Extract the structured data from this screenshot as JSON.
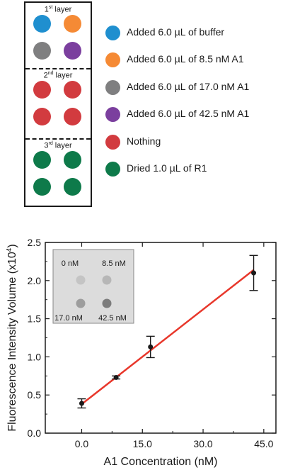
{
  "colors": {
    "blue": "#1f8fcf",
    "orange": "#f58a35",
    "gray": "#7f7f80",
    "purple": "#7b3f9e",
    "red": "#d23b3f",
    "green": "#0e7a4a",
    "fit_line": "#e8372b"
  },
  "diagram": {
    "layers": [
      {
        "number": "1",
        "suffix": "st",
        "word": "layer",
        "dots": [
          "blue",
          "orange",
          "gray",
          "purple"
        ]
      },
      {
        "number": "2",
        "suffix": "nd",
        "word": "layer",
        "dots": [
          "red",
          "red",
          "red",
          "red"
        ]
      },
      {
        "number": "3",
        "suffix": "rd",
        "word": "layer",
        "dots": [
          "green",
          "green",
          "green",
          "green"
        ]
      }
    ]
  },
  "legend": [
    {
      "color": "blue",
      "text": "Added 6.0 µL of buffer"
    },
    {
      "color": "orange",
      "text": "Added 6.0 µL of 8.5 nM A1"
    },
    {
      "color": "gray",
      "text": "Added 6.0 µL of 17.0 nM A1"
    },
    {
      "color": "purple",
      "text": "Added 6.0 µL of 42.5 nM A1"
    },
    {
      "color": "red",
      "text": "Nothing"
    },
    {
      "color": "green",
      "text": "Dried 1.0 µL of  R1"
    }
  ],
  "chart_data": {
    "type": "scatter",
    "xlabel": "A1 Concentration (nM)",
    "ylabel_main": "Fluorescence Intensity Volume (x10",
    "ylabel_exp": "4",
    "ylabel_end": ")",
    "xlim": [
      -9,
      48
    ],
    "ylim": [
      0,
      2.5
    ],
    "xticks": [
      0,
      15,
      30,
      45
    ],
    "xtick_labels": [
      "0.0",
      "15.0",
      "30.0",
      "45.0"
    ],
    "yticks": [
      0,
      0.5,
      1.0,
      1.5,
      2.0,
      2.5
    ],
    "ytick_labels": [
      "0.0",
      "0.5",
      "1.0",
      "1.5",
      "2.0",
      "2.5"
    ],
    "points": [
      {
        "x": 0,
        "y": 0.39,
        "err": 0.06
      },
      {
        "x": 8.5,
        "y": 0.73,
        "err": 0.02
      },
      {
        "x": 17.0,
        "y": 1.13,
        "err": 0.14
      },
      {
        "x": 42.5,
        "y": 2.1,
        "err": 0.23
      }
    ],
    "fit": {
      "x": [
        0,
        42.5
      ],
      "y": [
        0.38,
        2.14
      ]
    },
    "inset": {
      "labels": [
        "0 nM",
        "8.5 nM",
        "17.0 nM",
        "42.5 nM"
      ],
      "spot_intensity": [
        0.15,
        0.25,
        0.45,
        0.7
      ]
    }
  }
}
